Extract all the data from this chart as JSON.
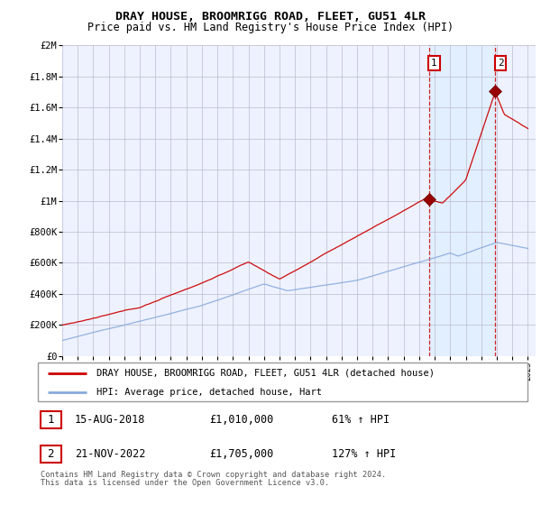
{
  "title": "DRAY HOUSE, BROOMRIGG ROAD, FLEET, GU51 4LR",
  "subtitle": "Price paid vs. HM Land Registry's House Price Index (HPI)",
  "sale1_date_num": 2018.62,
  "sale1_price": 1010000,
  "sale2_date_num": 2022.89,
  "sale2_price": 1705000,
  "legend_line1": "DRAY HOUSE, BROOMRIGG ROAD, FLEET, GU51 4LR (detached house)",
  "legend_line2": "HPI: Average price, detached house, Hart",
  "table_row1": [
    "1",
    "15-AUG-2018",
    "£1,010,000",
    "61% ↑ HPI"
  ],
  "table_row2": [
    "2",
    "21-NOV-2022",
    "£1,705,000",
    "127% ↑ HPI"
  ],
  "footnote1": "Contains HM Land Registry data © Crown copyright and database right 2024.",
  "footnote2": "This data is licensed under the Open Government Licence v3.0.",
  "xmin": 1995,
  "xmax": 2025.5,
  "ymin": 0,
  "ymax": 2000000,
  "yticks": [
    0,
    200000,
    400000,
    600000,
    800000,
    1000000,
    1200000,
    1400000,
    1600000,
    1800000,
    2000000
  ],
  "ytick_labels": [
    "£0",
    "£200K",
    "£400K",
    "£600K",
    "£800K",
    "£1M",
    "£1.2M",
    "£1.4M",
    "£1.6M",
    "£1.8M",
    "£2M"
  ],
  "line_color": "#cc0000",
  "hpi_color": "#88aadd",
  "shade_color": "#ddeeff",
  "bg_color": "#eef2ff",
  "grid_color": "#bbbbcc"
}
